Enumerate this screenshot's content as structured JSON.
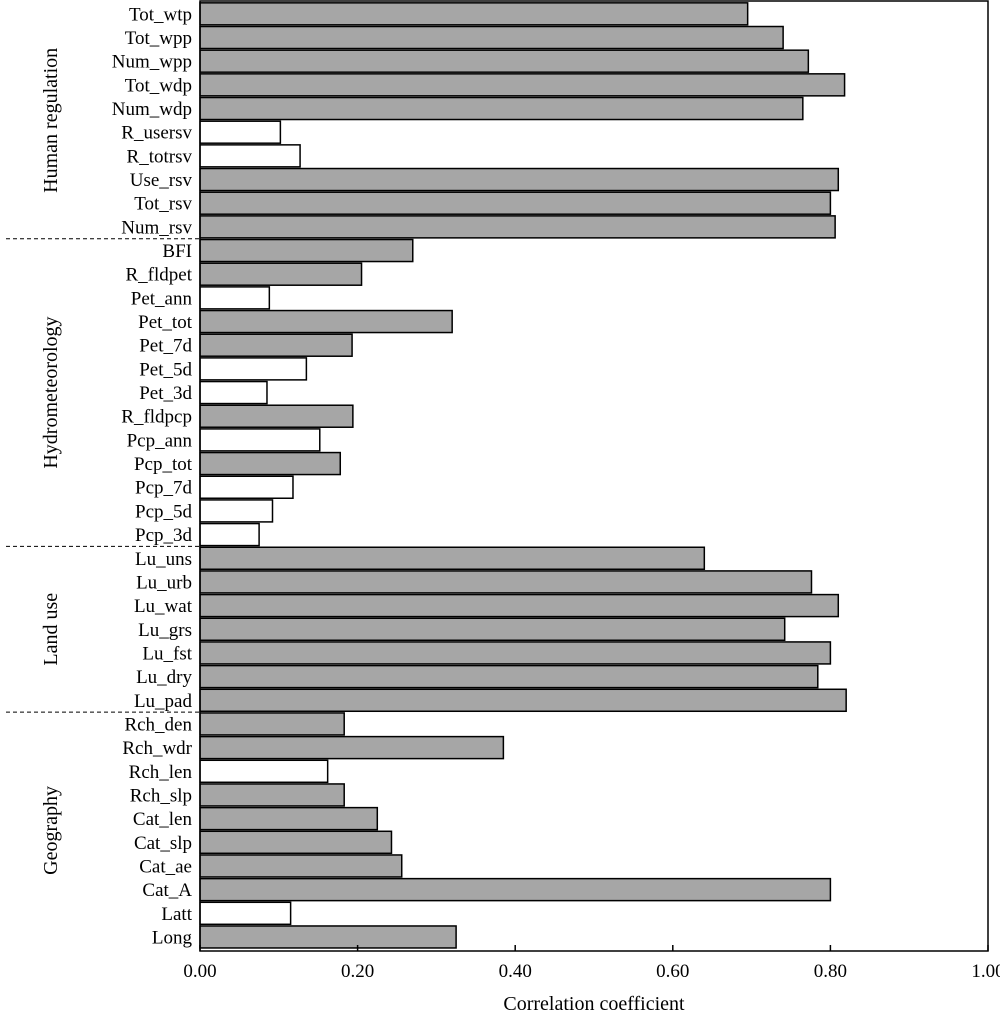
{
  "chart_data": {
    "type": "bar",
    "orientation": "horizontal",
    "xlabel": "Correlation coefficient",
    "ylabel": "",
    "xlim": [
      0,
      1
    ],
    "xticks": [
      "0.00",
      "0.20",
      "0.40",
      "0.60",
      "0.80",
      "1.00"
    ],
    "grid": false,
    "colors": {
      "significant": "#a6a6a6",
      "not_significant": "#ffffff",
      "edge": "#000000"
    },
    "groups": [
      {
        "name": "Human regulation",
        "bars": [
          {
            "label": "Tot_wtp",
            "value": 0.695,
            "significant": true
          },
          {
            "label": "Tot_wpp",
            "value": 0.74,
            "significant": true
          },
          {
            "label": "Num_wpp",
            "value": 0.772,
            "significant": true
          },
          {
            "label": "Tot_wdp",
            "value": 0.818,
            "significant": true
          },
          {
            "label": "Num_wdp",
            "value": 0.765,
            "significant": true
          },
          {
            "label": "R_usersv",
            "value": 0.102,
            "significant": false
          },
          {
            "label": "R_totrsv",
            "value": 0.127,
            "significant": false
          },
          {
            "label": "Use_rsv",
            "value": 0.81,
            "significant": true
          },
          {
            "label": "Tot_rsv",
            "value": 0.8,
            "significant": true
          },
          {
            "label": "Num_rsv",
            "value": 0.806,
            "significant": true
          }
        ]
      },
      {
        "name": "Hydrometeorology",
        "bars": [
          {
            "label": "BFI",
            "value": 0.27,
            "significant": true
          },
          {
            "label": "R_fldpet",
            "value": 0.205,
            "significant": true
          },
          {
            "label": "Pet_ann",
            "value": 0.088,
            "significant": false
          },
          {
            "label": "Pet_tot",
            "value": 0.32,
            "significant": true
          },
          {
            "label": "Pet_7d",
            "value": 0.193,
            "significant": true
          },
          {
            "label": "Pet_5d",
            "value": 0.135,
            "significant": false
          },
          {
            "label": "Pet_3d",
            "value": 0.085,
            "significant": false
          },
          {
            "label": "R_fldpcp",
            "value": 0.194,
            "significant": true
          },
          {
            "label": "Pcp_ann",
            "value": 0.152,
            "significant": false
          },
          {
            "label": "Pcp_tot",
            "value": 0.178,
            "significant": true
          },
          {
            "label": "Pcp_7d",
            "value": 0.118,
            "significant": false
          },
          {
            "label": "Pcp_5d",
            "value": 0.092,
            "significant": false
          },
          {
            "label": "Pcp_3d",
            "value": 0.075,
            "significant": false
          }
        ]
      },
      {
        "name": "Land use",
        "bars": [
          {
            "label": "Lu_uns",
            "value": 0.64,
            "significant": true
          },
          {
            "label": "Lu_urb",
            "value": 0.776,
            "significant": true
          },
          {
            "label": "Lu_wat",
            "value": 0.81,
            "significant": true
          },
          {
            "label": "Lu_grs",
            "value": 0.742,
            "significant": true
          },
          {
            "label": "Lu_fst",
            "value": 0.8,
            "significant": true
          },
          {
            "label": "Lu_dry",
            "value": 0.784,
            "significant": true
          },
          {
            "label": "Lu_pad",
            "value": 0.82,
            "significant": true
          }
        ]
      },
      {
        "name": "Geography",
        "bars": [
          {
            "label": "Rch_den",
            "value": 0.183,
            "significant": true
          },
          {
            "label": "Rch_wdr",
            "value": 0.385,
            "significant": true
          },
          {
            "label": "Rch_len",
            "value": 0.162,
            "significant": false
          },
          {
            "label": "Rch_slp",
            "value": 0.183,
            "significant": true
          },
          {
            "label": "Cat_len",
            "value": 0.225,
            "significant": true
          },
          {
            "label": "Cat_slp",
            "value": 0.243,
            "significant": true
          },
          {
            "label": "Cat_ae",
            "value": 0.256,
            "significant": true
          },
          {
            "label": "Cat_A",
            "value": 0.8,
            "significant": true
          },
          {
            "label": "Latt",
            "value": 0.115,
            "significant": false
          },
          {
            "label": "Long",
            "value": 0.325,
            "significant": true
          }
        ]
      }
    ]
  }
}
